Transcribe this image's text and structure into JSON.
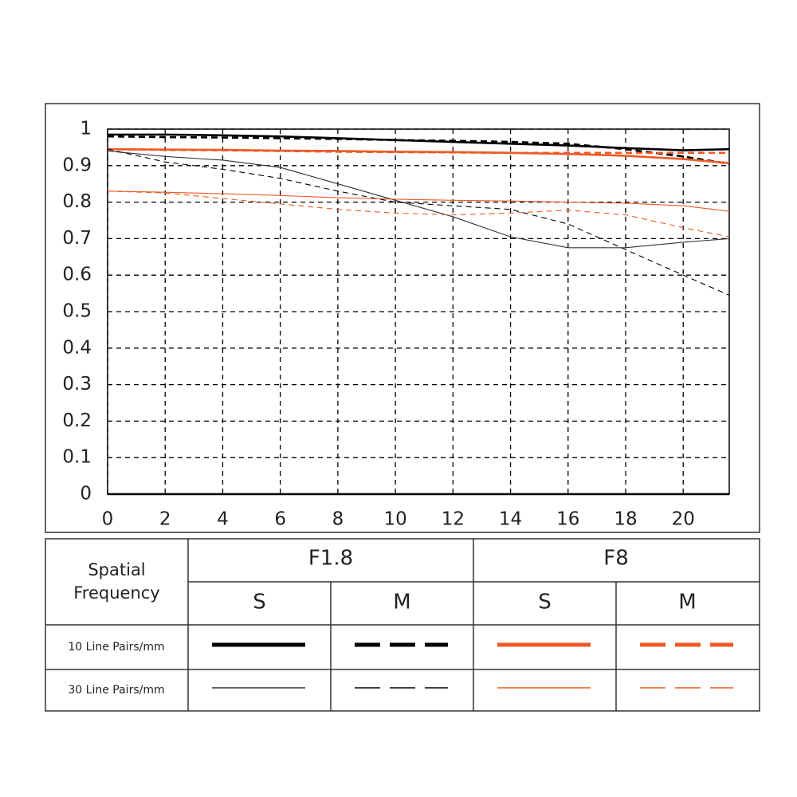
{
  "chart_data": {
    "type": "line",
    "x": [
      0,
      2,
      4,
      6,
      8,
      10,
      12,
      14,
      16,
      18,
      20,
      21.6
    ],
    "xlim": [
      0,
      21.6
    ],
    "xticks": [
      0,
      2,
      4,
      6,
      8,
      10,
      12,
      14,
      16,
      18,
      20
    ],
    "ylim": [
      0,
      1
    ],
    "yticks": [
      0,
      0.1,
      0.2,
      0.3,
      0.4,
      0.5,
      0.6,
      0.7,
      0.8,
      0.9,
      1
    ],
    "grid": true,
    "series": [
      {
        "color": "#000000",
        "line": "thick",
        "dash": false,
        "values": [
          0.985,
          0.985,
          0.983,
          0.98,
          0.975,
          0.97,
          0.965,
          0.96,
          0.955,
          0.948,
          0.942,
          0.945
        ]
      },
      {
        "color": "#000000",
        "line": "thick",
        "dash": true,
        "values": [
          0.98,
          0.978,
          0.977,
          0.975,
          0.973,
          0.97,
          0.968,
          0.965,
          0.96,
          0.945,
          0.925,
          0.905
        ]
      },
      {
        "color": "#ee5a24",
        "line": "thick",
        "dash": false,
        "values": [
          0.945,
          0.944,
          0.943,
          0.941,
          0.94,
          0.938,
          0.937,
          0.935,
          0.932,
          0.927,
          0.918,
          0.907
        ]
      },
      {
        "color": "#ee5a24",
        "line": "thick",
        "dash": true,
        "values": [
          0.945,
          0.943,
          0.942,
          0.94,
          0.938,
          0.937,
          0.936,
          0.935,
          0.935,
          0.935,
          0.935,
          0.935
        ]
      },
      {
        "color": "#333333",
        "line": "thin",
        "dash": false,
        "values": [
          0.94,
          0.925,
          0.915,
          0.895,
          0.85,
          0.805,
          0.76,
          0.705,
          0.675,
          0.675,
          0.69,
          0.7
        ]
      },
      {
        "color": "#000000",
        "line": "thin",
        "dash": true,
        "values": [
          0.945,
          0.91,
          0.89,
          0.865,
          0.83,
          0.8,
          0.79,
          0.78,
          0.74,
          0.67,
          0.6,
          0.545
        ]
      },
      {
        "color": "#ee5a24",
        "line": "thin",
        "dash": false,
        "values": [
          0.83,
          0.827,
          0.823,
          0.818,
          0.812,
          0.808,
          0.805,
          0.803,
          0.8,
          0.797,
          0.79,
          0.775
        ]
      },
      {
        "color": "#ee5a24",
        "line": "thin",
        "dash": true,
        "values": [
          0.83,
          0.825,
          0.81,
          0.795,
          0.78,
          0.77,
          0.765,
          0.77,
          0.778,
          0.765,
          0.73,
          0.705
        ]
      }
    ],
    "legend_table": {
      "corner": "Spatial Frequency",
      "groups": [
        "F1.8",
        "F8"
      ],
      "columns": [
        "S",
        "M",
        "S",
        "M"
      ],
      "rows": [
        "10 Line Pairs/mm",
        "30 Line Pairs/mm"
      ]
    }
  }
}
